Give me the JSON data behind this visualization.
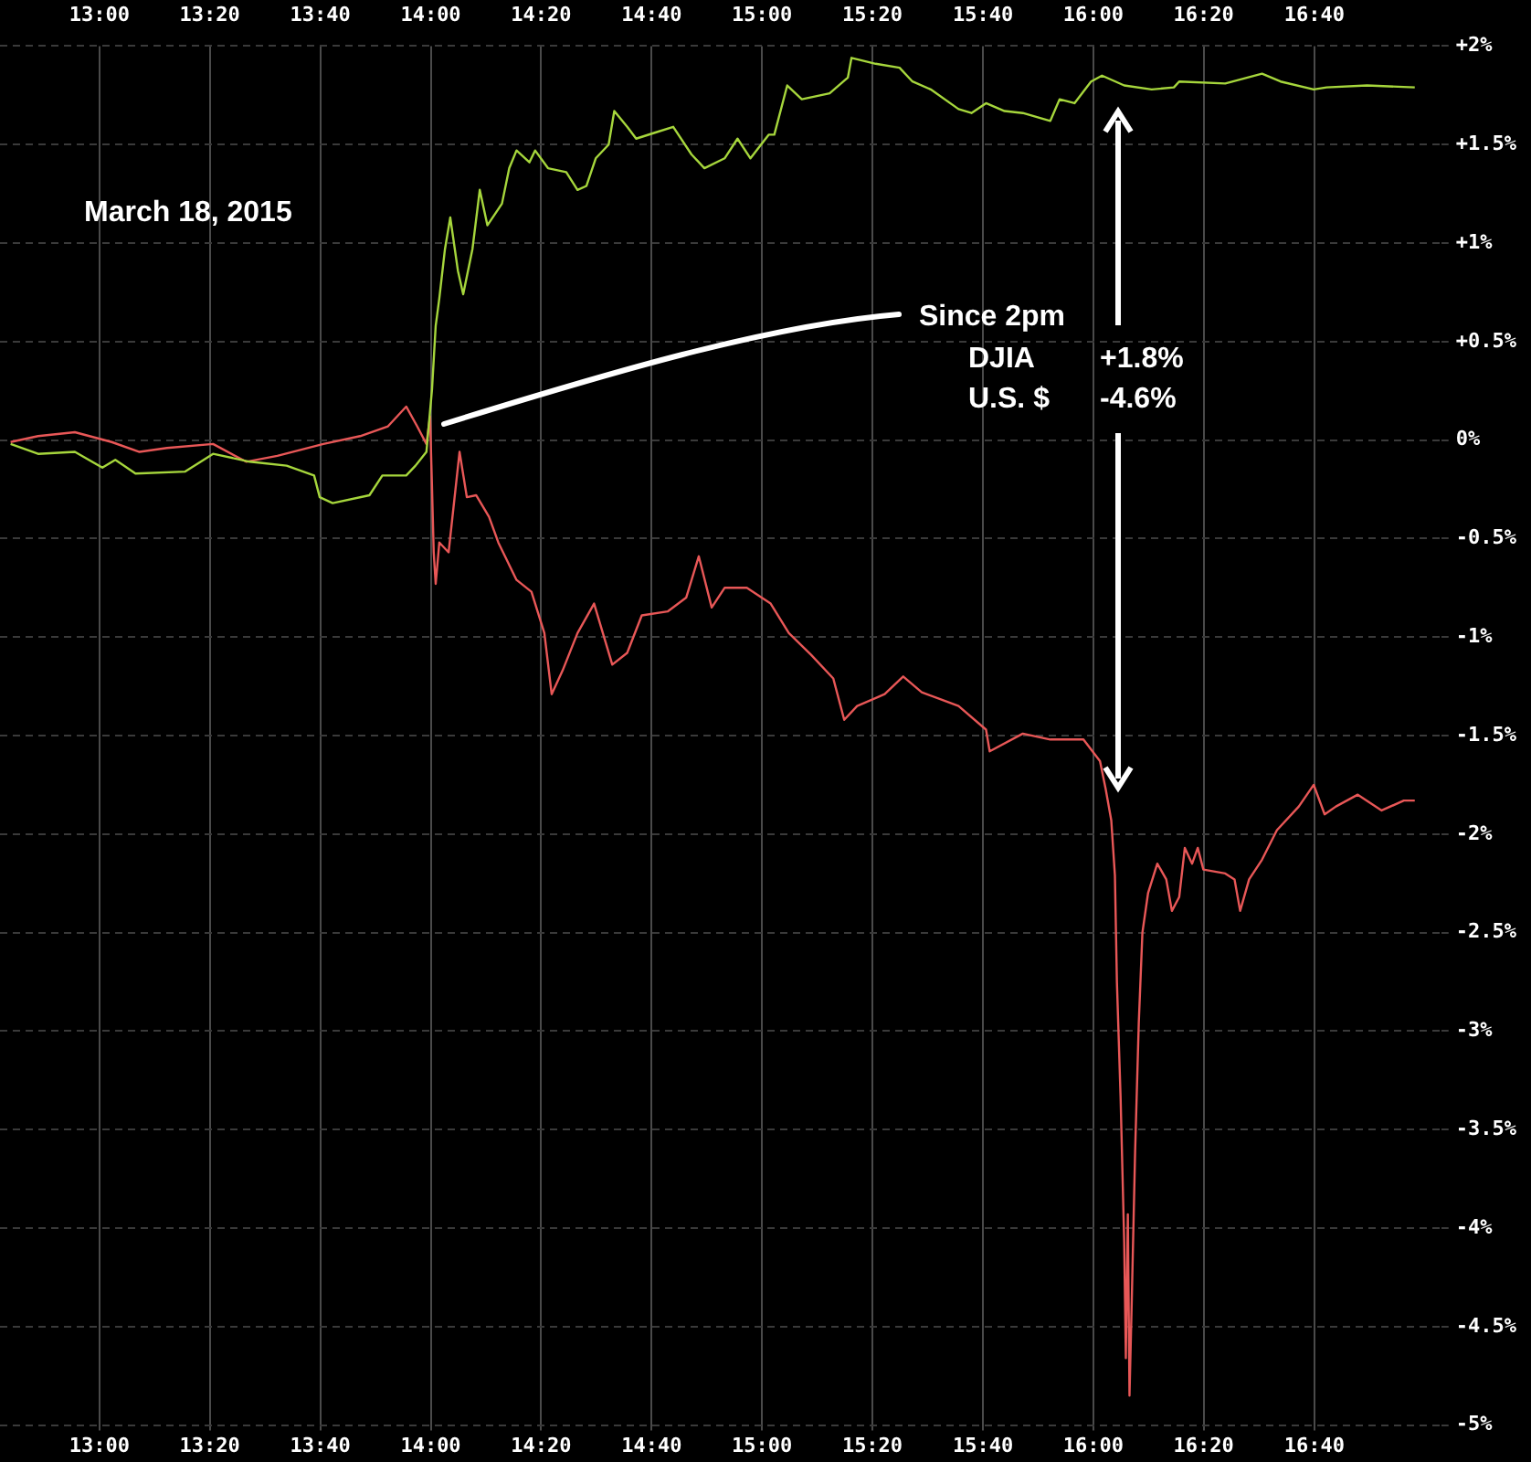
{
  "chart_data": {
    "type": "line",
    "marker": "none",
    "grid": true,
    "annotations": [
      "March 18, 2015",
      "Since 2pm",
      "DJIA    +1.8%",
      "U.S. $    -4.6%"
    ],
    "xlim": [
      12.7,
      17.05
    ],
    "xticks": [
      {
        "value": 13,
        "label": "13:00"
      },
      {
        "value": 13.333,
        "label": "13:20"
      },
      {
        "value": 13.667,
        "label": "13:40"
      },
      {
        "value": 14,
        "label": "14:00"
      },
      {
        "value": 14.333,
        "label": "14:20"
      },
      {
        "value": 14.667,
        "label": "14:40"
      },
      {
        "value": 15,
        "label": "15:00"
      },
      {
        "value": 15.333,
        "label": "15:20"
      },
      {
        "value": 15.667,
        "label": "15:40"
      },
      {
        "value": 16,
        "label": "16:00"
      },
      {
        "value": 16.333,
        "label": "16:20"
      },
      {
        "value": 16.667,
        "label": "16:40"
      }
    ],
    "x2lim": [
      12.7,
      17.05
    ],
    "x2ticks": [
      {
        "value": 13,
        "label": "13:00"
      },
      {
        "value": 13.333,
        "label": "13:20"
      },
      {
        "value": 13.667,
        "label": "13:40"
      },
      {
        "value": 14,
        "label": "14:00"
      },
      {
        "value": 14.333,
        "label": "14:20"
      },
      {
        "value": 14.667,
        "label": "14:40"
      },
      {
        "value": 15,
        "label": "15:00"
      },
      {
        "value": 15.333,
        "label": "15:20"
      },
      {
        "value": 15.667,
        "label": "15:40"
      },
      {
        "value": 16,
        "label": "16:00"
      },
      {
        "value": 16.333,
        "label": "16:20"
      },
      {
        "value": 16.667,
        "label": "16:40"
      }
    ],
    "ylim": [
      -5,
      2
    ],
    "yticks": [
      {
        "value": 2,
        "label": "+2%"
      },
      {
        "value": 1.5,
        "label": "+1.5%"
      },
      {
        "value": 1,
        "label": "+1%"
      },
      {
        "value": 0.5,
        "label": "+0.5%"
      },
      {
        "value": 0,
        "label": "0%"
      },
      {
        "value": -0.5,
        "label": "-0.5%"
      },
      {
        "value": -1,
        "label": "-1%"
      },
      {
        "value": -1.5,
        "label": "-1.5%"
      },
      {
        "value": -2,
        "label": "-2%"
      },
      {
        "value": -2.5,
        "label": "-2.5%"
      },
      {
        "value": -3,
        "label": "-3%"
      },
      {
        "value": -3.5,
        "label": "-3.5%"
      },
      {
        "value": -4,
        "label": "-4%"
      },
      {
        "value": -4.5,
        "label": "-4.5%"
      },
      {
        "value": -5,
        "label": "-5%"
      }
    ],
    "series": [
      {
        "color": "#a6d63c",
        "x": [
          12.732,
          12.815,
          12.926,
          13.009,
          13.048,
          13.109,
          13.259,
          13.343,
          13.454,
          13.565,
          13.648,
          13.665,
          13.704,
          13.815,
          13.854,
          13.926,
          13.954,
          13.987,
          14.004,
          14.015,
          14.026,
          14.043,
          14.059,
          14.082,
          14.098,
          14.126,
          14.148,
          14.171,
          14.215,
          14.237,
          14.259,
          14.298,
          14.315,
          14.354,
          14.409,
          14.443,
          14.47,
          14.498,
          14.537,
          14.554,
          14.593,
          14.62,
          14.676,
          14.732,
          14.787,
          14.826,
          14.887,
          14.926,
          14.965,
          15.02,
          15.037,
          15.076,
          15.12,
          15.204,
          15.259,
          15.27,
          15.343,
          15.415,
          15.454,
          15.509,
          15.593,
          15.632,
          15.676,
          15.732,
          15.787,
          15.87,
          15.898,
          15.943,
          15.993,
          16.026,
          16.093,
          16.176,
          16.243,
          16.259,
          16.398,
          16.509,
          16.565,
          16.665,
          16.704,
          16.826,
          16.97
        ],
        "values": [
          -0.02,
          -0.07,
          -0.06,
          -0.14,
          -0.1,
          -0.17,
          -0.16,
          -0.07,
          -0.11,
          -0.13,
          -0.18,
          -0.29,
          -0.32,
          -0.28,
          -0.18,
          -0.18,
          -0.13,
          -0.06,
          0.26,
          0.58,
          0.72,
          0.97,
          1.13,
          0.86,
          0.74,
          0.97,
          1.27,
          1.09,
          1.2,
          1.38,
          1.47,
          1.41,
          1.47,
          1.38,
          1.36,
          1.27,
          1.29,
          1.43,
          1.5,
          1.67,
          1.59,
          1.53,
          1.56,
          1.59,
          1.45,
          1.38,
          1.43,
          1.53,
          1.43,
          1.55,
          1.55,
          1.8,
          1.73,
          1.76,
          1.84,
          1.94,
          1.91,
          1.89,
          1.82,
          1.78,
          1.68,
          1.66,
          1.71,
          1.67,
          1.66,
          1.62,
          1.73,
          1.71,
          1.82,
          1.85,
          1.8,
          1.78,
          1.79,
          1.82,
          1.81,
          1.86,
          1.82,
          1.78,
          1.79,
          1.8,
          1.79
        ]
      },
      {
        "color": "#e85757",
        "x": [
          12.732,
          12.815,
          12.926,
          13.037,
          13.121,
          13.204,
          13.343,
          13.443,
          13.537,
          13.676,
          13.787,
          13.871,
          13.926,
          13.959,
          13.987,
          13.998,
          14.004,
          14.009,
          14.015,
          14.026,
          14.054,
          14.087,
          14.109,
          14.137,
          14.176,
          14.204,
          14.259,
          14.304,
          14.343,
          14.365,
          14.398,
          14.443,
          14.493,
          14.548,
          14.593,
          14.637,
          14.715,
          14.771,
          14.809,
          14.848,
          14.887,
          14.954,
          15.026,
          15.081,
          15.148,
          15.215,
          15.248,
          15.287,
          15.37,
          15.426,
          15.482,
          15.593,
          15.676,
          15.687,
          15.787,
          15.87,
          15.97,
          16.02,
          16.037,
          16.054,
          16.065,
          16.071,
          16.082,
          16.093,
          16.098,
          16.104,
          16.109,
          16.115,
          16.126,
          16.137,
          16.148,
          16.165,
          16.193,
          16.22,
          16.237,
          16.259,
          16.276,
          16.298,
          16.315,
          16.332,
          16.398,
          16.426,
          16.443,
          16.47,
          16.509,
          16.554,
          16.62,
          16.665,
          16.698,
          16.732,
          16.798,
          16.87,
          16.937,
          16.97
        ],
        "values": [
          -0.01,
          0.02,
          0.04,
          -0.01,
          -0.06,
          -0.04,
          -0.02,
          -0.11,
          -0.08,
          -0.02,
          0.02,
          0.07,
          0.17,
          0.07,
          -0.02,
          0.12,
          -0.25,
          -0.57,
          -0.73,
          -0.52,
          -0.57,
          -0.06,
          -0.29,
          -0.28,
          -0.39,
          -0.52,
          -0.71,
          -0.77,
          -0.98,
          -1.29,
          -1.17,
          -0.98,
          -0.83,
          -1.14,
          -1.08,
          -0.89,
          -0.87,
          -0.8,
          -0.59,
          -0.85,
          -0.75,
          -0.75,
          -0.83,
          -0.98,
          -1.09,
          -1.21,
          -1.42,
          -1.35,
          -1.29,
          -1.2,
          -1.28,
          -1.35,
          -1.47,
          -1.58,
          -1.49,
          -1.52,
          -1.52,
          -1.63,
          -1.77,
          -1.93,
          -2.21,
          -2.75,
          -3.33,
          -4.07,
          -4.66,
          -3.93,
          -4.85,
          -4.43,
          -3.61,
          -2.96,
          -2.5,
          -2.3,
          -2.15,
          -2.23,
          -2.39,
          -2.32,
          -2.07,
          -2.15,
          -2.07,
          -2.18,
          -2.2,
          -2.23,
          -2.39,
          -2.23,
          -2.13,
          -1.98,
          -1.86,
          -1.75,
          -1.9,
          -1.86,
          -1.8,
          -1.88,
          -1.83,
          -1.83
        ]
      }
    ]
  }
}
